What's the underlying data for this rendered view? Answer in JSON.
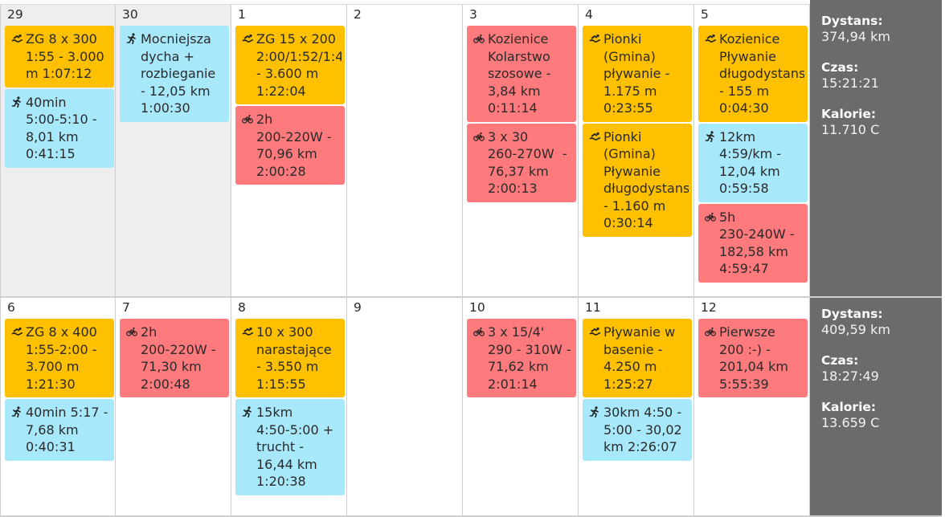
{
  "colors": {
    "swim": "#ffc000",
    "bike": "#ff7a7c",
    "run": "#a8e8fb",
    "summary_bg": "#6b6b6b"
  },
  "weeks": [
    {
      "days": [
        {
          "num": "29",
          "muted": true,
          "events": [
            {
              "type": "swim",
              "icon": "swim-icon",
              "text": "ZG 8 x 300\n1:55 - 3.000\nm 1:07:12"
            },
            {
              "type": "run",
              "icon": "run-icon",
              "text": "40min\n5:00-5:10 -\n8,01 km\n0:41:15"
            }
          ]
        },
        {
          "num": "30",
          "muted": true,
          "events": [
            {
              "type": "run",
              "icon": "run-icon",
              "text": "Mocniejsza\ndycha +\nrozbieganie\n- 12,05 km\n1:00:30"
            }
          ]
        },
        {
          "num": "1",
          "muted": false,
          "events": [
            {
              "type": "swim",
              "icon": "swim-icon",
              "text": "ZG 15 x 200\n2:00/1:52/1:4\n- 3.600 m\n1:22:04"
            },
            {
              "type": "bike",
              "icon": "bike-icon",
              "text": "2h\n200-220W -\n70,96 km\n2:00:28"
            }
          ]
        },
        {
          "num": "2",
          "muted": false,
          "events": []
        },
        {
          "num": "3",
          "muted": false,
          "events": [
            {
              "type": "bike",
              "icon": "bike-icon",
              "text": "Kozienice\nKolarstwo\nszosowe -\n3,84 km\n0:11:14"
            },
            {
              "type": "bike",
              "icon": "bike-icon",
              "text": "3 x 30\n260-270W  -\n76,37 km\n2:00:13"
            }
          ]
        },
        {
          "num": "4",
          "muted": false,
          "events": [
            {
              "type": "swim",
              "icon": "swim-icon",
              "text": "Pionki\n(Gmina)\npływanie -\n1.175 m\n0:23:55"
            },
            {
              "type": "swim",
              "icon": "swim-icon",
              "text": "Pionki\n(Gmina)\nPływanie\ndługodystans\n- 1.160 m\n0:30:14"
            }
          ]
        },
        {
          "num": "5",
          "muted": false,
          "events": [
            {
              "type": "swim",
              "icon": "swim-icon",
              "text": "Kozienice\nPływanie\ndługodystans\n- 155 m\n0:04:30"
            },
            {
              "type": "run",
              "icon": "run-icon",
              "text": "12km\n4:59/km -\n12,04 km\n0:59:58"
            },
            {
              "type": "bike",
              "icon": "bike-icon",
              "text": "5h\n230-240W -\n182,58 km\n4:59:47"
            }
          ]
        }
      ],
      "summary": {
        "dist_label": "Dystans:",
        "dist": "374,94 km",
        "time_label": "Czas:",
        "time": "15:21:21",
        "cal_label": "Kalorie:",
        "cal": "11.710 C"
      }
    },
    {
      "days": [
        {
          "num": "6",
          "muted": false,
          "events": [
            {
              "type": "swim",
              "icon": "swim-icon",
              "text": "ZG 8 x 400\n1:55-2:00 -\n3.700 m\n1:21:30"
            },
            {
              "type": "run",
              "icon": "run-icon",
              "text": "40min 5:17 -\n7,68 km\n0:40:31"
            }
          ]
        },
        {
          "num": "7",
          "muted": false,
          "events": [
            {
              "type": "bike",
              "icon": "bike-icon",
              "text": "2h\n200-220W -\n71,30 km\n2:00:48"
            }
          ]
        },
        {
          "num": "8",
          "muted": false,
          "events": [
            {
              "type": "swim",
              "icon": "swim-icon",
              "text": "10 x 300\nnarastające\n- 3.550 m\n1:15:55"
            },
            {
              "type": "run",
              "icon": "run-icon",
              "text": "15km\n4:50-5:00 +\ntrucht -\n16,44 km\n1:20:38"
            }
          ]
        },
        {
          "num": "9",
          "muted": false,
          "events": []
        },
        {
          "num": "10",
          "muted": false,
          "events": [
            {
              "type": "bike",
              "icon": "bike-icon",
              "text": "3 x 15/4'\n290 - 310W -\n71,62 km\n2:01:14"
            }
          ]
        },
        {
          "num": "11",
          "muted": false,
          "events": [
            {
              "type": "swim",
              "icon": "swim-icon",
              "text": "Pływanie w\nbasenie -\n4.250 m\n1:25:27"
            },
            {
              "type": "run",
              "icon": "run-icon",
              "text": "30km 4:50 -\n5:00 - 30,02\nkm 2:26:07"
            }
          ]
        },
        {
          "num": "12",
          "muted": false,
          "events": [
            {
              "type": "bike",
              "icon": "bike-icon",
              "text": "Pierwsze\n200 :-) -\n201,04 km\n5:55:39"
            }
          ]
        }
      ],
      "summary": {
        "dist_label": "Dystans:",
        "dist": "409,59 km",
        "time_label": "Czas:",
        "time": "18:27:49",
        "cal_label": "Kalorie:",
        "cal": "13.659 C"
      }
    }
  ]
}
